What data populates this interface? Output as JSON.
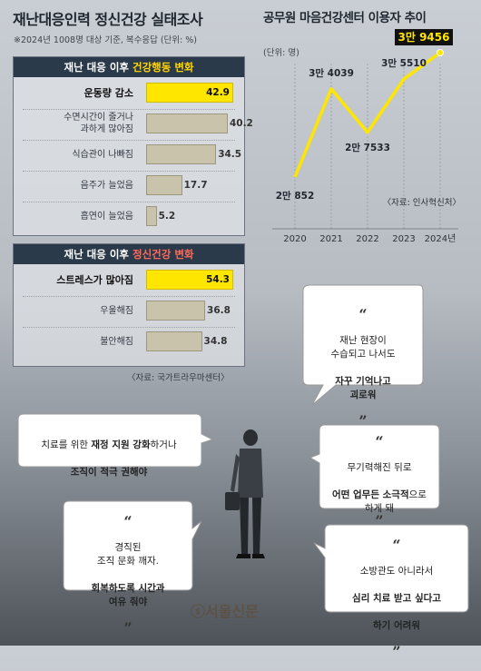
{
  "header": {
    "title": "재난대응인력 정신건강 실태조사",
    "subtitle": "※2024년 1008명 대상 기준, 복수응답  (단위: %)"
  },
  "panel1": {
    "head_prefix": "재난 대응 이후 ",
    "head_highlight": "건강행동 변화",
    "rows": [
      {
        "label": "운동량 감소",
        "value": "42.9"
      },
      {
        "label": "수면시간이 줄거나\n과하게 많아짐",
        "value": "40.2"
      },
      {
        "label": "식습관이 나빠짐",
        "value": "34.5"
      },
      {
        "label": "음주가 늘었음",
        "value": "17.7"
      },
      {
        "label": "흡연이 늘었음",
        "value": "5.2"
      }
    ]
  },
  "panel2": {
    "head_prefix": "재난 대응 이후 ",
    "head_highlight": "정신건강 변화",
    "rows": [
      {
        "label": "스트레스가 많아짐",
        "value": "54.3"
      },
      {
        "label": "우울해짐",
        "value": "36.8"
      },
      {
        "label": "불안해짐",
        "value": "34.8"
      }
    ],
    "source": "〈자료: 국가트라우마센터〉"
  },
  "chart_data": [
    {
      "type": "bar",
      "title": "재난 대응 이후 건강행동 변화",
      "categories": [
        "운동량 감소",
        "수면시간이 줄거나 과하게 많아짐",
        "식습관이 나빠짐",
        "음주가 늘었음",
        "흡연이 늘었음"
      ],
      "values": [
        42.9,
        40.2,
        34.5,
        17.7,
        5.2
      ],
      "unit": "%",
      "colors": {
        "top": "#ffe600",
        "rest": "#c8c3aa"
      }
    },
    {
      "type": "bar",
      "title": "재난 대응 이후 정신건강 변화",
      "categories": [
        "스트레스가 많아짐",
        "우울해짐",
        "불안해짐"
      ],
      "values": [
        54.3,
        36.8,
        34.8
      ],
      "unit": "%",
      "colors": {
        "top": "#ffe600",
        "rest": "#c8c3aa"
      }
    },
    {
      "type": "line",
      "title": "공무원 마음건강센터 이용자 추이",
      "ylabel": "(단위: 명)",
      "x": [
        "2020",
        "2021",
        "2022",
        "2023",
        "2024년"
      ],
      "values": [
        20852,
        34039,
        27533,
        35510,
        39456
      ],
      "point_labels": [
        "2만 852",
        "3만 4039",
        "2만 7533",
        "3만 5510",
        "3만 9456"
      ],
      "source": "〈자료: 인사혁신처〉",
      "line_color": "#ffe600"
    }
  ],
  "bubbles": [
    {
      "quote_open": "“",
      "lines": "재난 현장이\n수습되고 나서도",
      "bold": "자꾸 기억나고\n괴로워",
      "quote_close": "”"
    },
    {
      "pre": "치료를 위한 ",
      "bold1": "재정 지원 강화",
      "mid": "하거나",
      "bold2": "조직이 적극 권해야"
    },
    {
      "quote_open": "“",
      "lines": "무기력해진 뒤로",
      "bold": "어떤 업무든 소극적",
      "tail": "으로\n하게 돼",
      "quote_close": "”"
    },
    {
      "quote_open": "“",
      "lines": "경직된\n조직 문화 깨자.",
      "bold": "회복하도록 시간과\n여유 줘야",
      "quote_close": "”"
    },
    {
      "quote_open": "“",
      "lines": "소방관도 아니라서",
      "bold": "심리 치료 받고 싶다고",
      "tail": "하기 어려워",
      "quote_close": "”"
    }
  ],
  "logo": "ⓢ서울신문"
}
